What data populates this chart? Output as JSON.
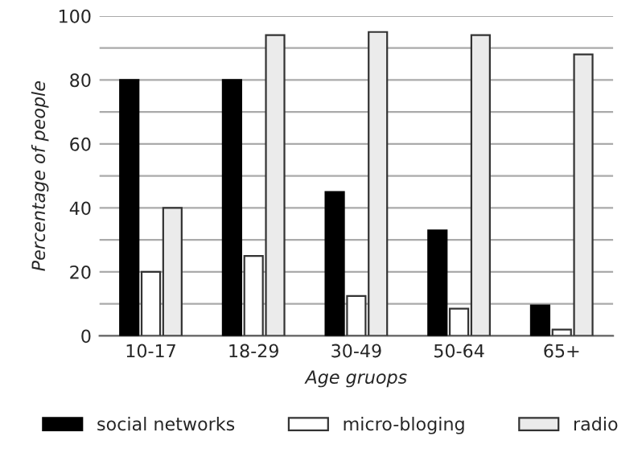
{
  "chart_data": {
    "type": "bar",
    "xlabel": "Age gruops",
    "ylabel": "Percentage of people",
    "categories": [
      "10-17",
      "18-29",
      "30-49",
      "50-64",
      "65+"
    ],
    "series": [
      {
        "name": "social networks",
        "color": "#000000",
        "values": [
          80,
          80,
          45,
          33,
          9.5
        ]
      },
      {
        "name": "micro-bloging",
        "color": "#ffffff",
        "values": [
          20,
          25,
          12.5,
          8.5,
          2
        ]
      },
      {
        "name": "radio",
        "color": "#ebebeb",
        "values": [
          40,
          94,
          95,
          94,
          88
        ]
      }
    ],
    "ylim": [
      0,
      100
    ],
    "yticks": [
      0,
      {
        "value": 10,
        "label": null
      },
      20,
      {
        "value": 30,
        "label": null
      },
      40,
      {
        "value": 50,
        "label": null
      },
      60,
      {
        "value": 70,
        "label": null
      },
      80,
      {
        "value": 90,
        "label": null
      },
      100
    ],
    "grid": "y",
    "legend": "bottom"
  }
}
